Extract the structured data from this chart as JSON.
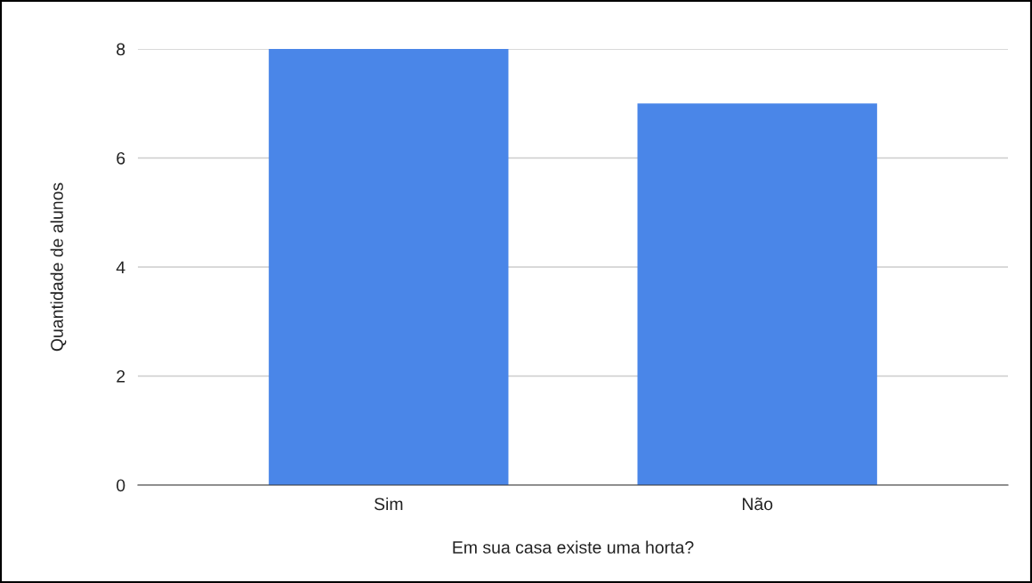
{
  "chart_data": {
    "type": "bar",
    "xlabel": "Em sua casa existe uma horta?",
    "ylabel": "Quantidade de alunos",
    "categories": [
      "Sim",
      "Não"
    ],
    "values": [
      8,
      7
    ],
    "color": "#4a86e8",
    "ylim": [
      0,
      8
    ],
    "yticks": [
      0,
      2,
      4,
      6,
      8
    ],
    "grid": "y",
    "legend": false
  }
}
